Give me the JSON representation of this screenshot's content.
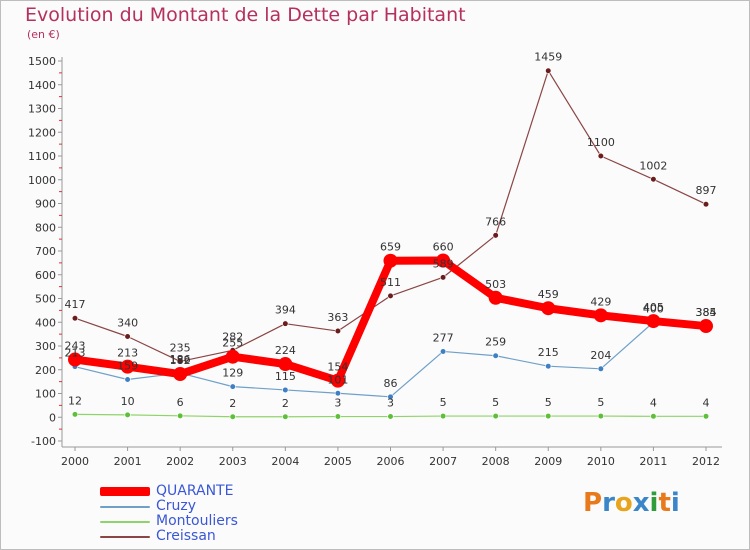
{
  "title": "Evolution du Montant de la Dette par Habitant",
  "subtitle": "(en €)",
  "brand": {
    "letters": [
      "P",
      "r",
      "o",
      "x",
      "i",
      "t",
      "i"
    ],
    "colors": [
      "#e87a1c",
      "#3b86c9",
      "#e8a41c",
      "#3b86c9",
      "#2f9e3a",
      "#e87a1c",
      "#3b86c9"
    ]
  },
  "chart_data": {
    "type": "line",
    "title": "Evolution du Montant de la Dette par Habitant",
    "ylabel": "(en €)",
    "xlabel": "",
    "x": [
      "2000",
      "2001",
      "2002",
      "2003",
      "2004",
      "2005",
      "2006",
      "2007",
      "2008",
      "2009",
      "2010",
      "2011",
      "2012"
    ],
    "ylim": [
      -100,
      1500
    ],
    "yticks": [
      -100,
      0,
      100,
      200,
      300,
      400,
      500,
      600,
      700,
      800,
      900,
      1000,
      1100,
      1200,
      1300,
      1400,
      1500
    ],
    "grid": false,
    "legend_position": "bottom-left",
    "series": [
      {
        "name": "QUARANTE",
        "color": "#ff0000",
        "bold": true,
        "values": [
          243,
          213,
          182,
          255,
          224,
          154,
          659,
          660,
          503,
          459,
          429,
          405,
          384
        ],
        "labels": [
          "243",
          "213",
          "182",
          "255",
          "224",
          "154",
          "659",
          "660",
          "503",
          "459",
          "429",
          "405",
          "384"
        ]
      },
      {
        "name": "Cruzy",
        "color": "#6fa0c8",
        "marker": "#3f7fc4",
        "values": [
          213,
          159,
          186,
          129,
          115,
          101,
          86,
          277,
          259,
          215,
          204,
          400,
          385
        ],
        "labels": [
          "213",
          "159",
          "186",
          "129",
          "115",
          "101",
          "86",
          "277",
          "259",
          "215",
          "204",
          "400",
          "385"
        ]
      },
      {
        "name": "Montouliers",
        "color": "#8fd46a",
        "marker": "#5fbf3a",
        "values": [
          12,
          10,
          6,
          2,
          2,
          3,
          3,
          5,
          5,
          5,
          5,
          4,
          4
        ],
        "labels": [
          "12",
          "10",
          "6",
          "2",
          "2",
          "3",
          "3",
          "5",
          "5",
          "5",
          "5",
          "4",
          "4"
        ]
      },
      {
        "name": "Creissan",
        "color": "#8b4545",
        "marker": "#6b1d1d",
        "values": [
          417,
          340,
          235,
          282,
          394,
          363,
          511,
          589,
          766,
          1459,
          1100,
          1002,
          897
        ],
        "labels": [
          "417",
          "340",
          "235",
          "282",
          "394",
          "363",
          "511",
          "589",
          "766",
          "1459",
          "1100",
          "1002",
          "897"
        ]
      }
    ]
  }
}
